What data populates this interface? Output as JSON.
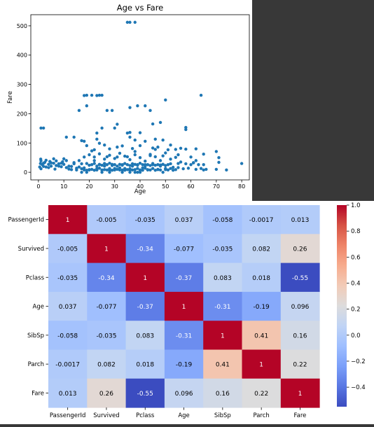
{
  "chart_data": [
    {
      "type": "scatter",
      "title": "Age vs Fare",
      "xlabel": "Age",
      "ylabel": "Fare",
      "xlim": [
        -3,
        83
      ],
      "ylim": [
        -26,
        538
      ],
      "xticks": [
        0,
        10,
        20,
        30,
        40,
        50,
        60,
        70,
        80
      ],
      "yticks": [
        0,
        100,
        200,
        300,
        400,
        500
      ],
      "color": "#1f77b4",
      "grid": false,
      "points": [
        [
          35,
          512
        ],
        [
          36,
          512
        ],
        [
          38,
          512
        ],
        [
          64,
          263
        ],
        [
          50,
          247
        ],
        [
          18,
          262
        ],
        [
          19,
          263
        ],
        [
          21,
          263
        ],
        [
          23,
          262
        ],
        [
          24,
          263
        ],
        [
          25,
          263
        ],
        [
          19,
          227
        ],
        [
          27,
          211
        ],
        [
          29,
          211
        ],
        [
          36,
          221
        ],
        [
          42,
          227
        ],
        [
          44,
          211
        ],
        [
          16,
          211
        ],
        [
          39,
          227
        ],
        [
          1,
          151
        ],
        [
          2,
          151
        ],
        [
          25,
          151
        ],
        [
          30,
          151
        ],
        [
          58,
          153
        ],
        [
          58,
          146
        ],
        [
          45,
          165
        ],
        [
          35,
          134
        ],
        [
          36,
          136
        ],
        [
          40,
          135
        ],
        [
          31,
          164
        ],
        [
          48,
          170
        ],
        [
          11,
          120
        ],
        [
          14,
          120
        ],
        [
          17,
          108
        ],
        [
          18,
          106
        ],
        [
          23,
          134
        ],
        [
          23,
          113
        ],
        [
          24,
          99
        ],
        [
          26,
          93
        ],
        [
          33,
          90
        ],
        [
          36,
          120
        ],
        [
          38,
          110
        ],
        [
          42,
          106
        ],
        [
          46,
          113
        ],
        [
          49,
          110
        ],
        [
          52,
          93
        ],
        [
          54,
          78
        ],
        [
          58,
          79
        ],
        [
          62,
          80
        ],
        [
          70,
          71
        ],
        [
          71,
          50
        ],
        [
          65,
          62
        ],
        [
          56,
          82
        ],
        [
          51,
          77
        ],
        [
          45,
          83
        ],
        [
          40,
          91
        ],
        [
          31,
          86
        ],
        [
          28,
          80
        ],
        [
          22,
          77
        ],
        [
          19,
          91
        ],
        [
          37,
          81
        ],
        [
          47,
          86
        ],
        [
          0.9,
          45
        ],
        [
          1,
          39
        ],
        [
          2,
          31
        ],
        [
          3,
          18
        ],
        [
          4,
          27
        ],
        [
          5,
          32
        ],
        [
          6,
          31
        ],
        [
          7,
          39
        ],
        [
          8,
          21
        ],
        [
          9,
          31
        ],
        [
          10,
          46
        ],
        [
          11,
          40
        ],
        [
          12,
          11
        ],
        [
          13,
          20
        ],
        [
          14,
          29
        ],
        [
          15,
          8
        ],
        [
          16,
          18
        ],
        [
          17,
          12
        ],
        [
          18,
          8
        ],
        [
          19,
          30
        ],
        [
          20,
          9
        ],
        [
          21,
          73
        ],
        [
          22,
          52
        ],
        [
          23,
          13
        ],
        [
          24,
          26
        ],
        [
          25,
          8
        ],
        [
          26,
          30
        ],
        [
          27,
          53
        ],
        [
          28,
          7
        ],
        [
          29,
          27
        ],
        [
          30,
          13
        ],
        [
          31,
          52
        ],
        [
          32,
          8
        ],
        [
          33,
          26
        ],
        [
          34,
          13
        ],
        [
          35,
          53
        ],
        [
          36,
          7
        ],
        [
          37,
          29
        ],
        [
          38,
          71
        ],
        [
          39,
          26
        ],
        [
          40,
          7
        ],
        [
          41,
          15
        ],
        [
          42,
          26
        ],
        [
          43,
          8
        ],
        [
          44,
          57
        ],
        [
          45,
          26
        ],
        [
          46,
          78
        ],
        [
          47,
          10
        ],
        [
          48,
          25
        ],
        [
          49,
          56
        ],
        [
          50,
          13
        ],
        [
          51,
          26
        ],
        [
          52,
          29
        ],
        [
          53,
          17
        ],
        [
          54,
          51
        ],
        [
          55,
          30
        ],
        [
          56,
          35
        ],
        [
          57,
          12
        ],
        [
          58,
          29
        ],
        [
          59,
          14
        ],
        [
          60,
          26
        ],
        [
          61,
          32
        ],
        [
          62,
          10
        ],
        [
          63,
          26
        ],
        [
          64,
          13
        ],
        [
          65,
          26
        ],
        [
          66,
          10
        ],
        [
          70,
          10
        ],
        [
          71,
          34
        ],
        [
          74,
          8
        ],
        [
          80,
          30
        ],
        [
          16,
          40
        ],
        [
          18,
          52
        ],
        [
          20,
          60
        ],
        [
          22,
          40
        ],
        [
          24,
          63
        ],
        [
          26,
          45
        ],
        [
          28,
          58
        ],
        [
          30,
          47
        ],
        [
          32,
          65
        ],
        [
          34,
          55
        ],
        [
          36,
          43
        ],
        [
          38,
          60
        ],
        [
          40,
          50
        ],
        [
          42,
          38
        ],
        [
          44,
          61
        ],
        [
          46,
          53
        ],
        [
          48,
          40
        ],
        [
          50,
          66
        ],
        [
          52,
          45
        ],
        [
          55,
          60
        ],
        [
          60,
          52
        ],
        [
          62,
          40
        ],
        [
          18,
          15
        ],
        [
          19,
          7
        ],
        [
          20,
          8
        ],
        [
          21,
          10
        ],
        [
          22,
          7
        ],
        [
          23,
          8
        ],
        [
          24,
          14
        ],
        [
          25,
          7
        ],
        [
          26,
          9
        ],
        [
          27,
          8
        ],
        [
          28,
          13
        ],
        [
          29,
          7
        ],
        [
          30,
          8
        ],
        [
          31,
          10
        ],
        [
          32,
          15
        ],
        [
          33,
          8
        ],
        [
          34,
          7
        ],
        [
          35,
          9
        ],
        [
          36,
          12
        ],
        [
          37,
          8
        ],
        [
          38,
          9
        ],
        [
          39,
          13
        ],
        [
          40,
          8
        ],
        [
          41,
          7
        ],
        [
          42,
          14
        ],
        [
          43,
          9
        ],
        [
          44,
          8
        ],
        [
          45,
          13
        ],
        [
          46,
          7
        ],
        [
          47,
          9
        ],
        [
          48,
          8
        ],
        [
          49,
          27
        ],
        [
          50,
          9
        ],
        [
          51,
          8
        ],
        [
          52,
          13
        ],
        [
          53,
          7
        ],
        [
          54,
          9
        ],
        [
          55,
          16
        ],
        [
          20,
          24
        ],
        [
          21,
          26
        ],
        [
          22,
          30
        ],
        [
          23,
          21
        ],
        [
          24,
          27
        ],
        [
          25,
          24
        ],
        [
          26,
          21
        ],
        [
          27,
          26
        ],
        [
          28,
          31
        ],
        [
          29,
          23
        ],
        [
          30,
          26
        ],
        [
          31,
          21
        ],
        [
          32,
          27
        ],
        [
          33,
          24
        ],
        [
          34,
          30
        ],
        [
          35,
          26
        ],
        [
          36,
          23
        ],
        [
          37,
          21
        ],
        [
          38,
          27
        ],
        [
          39,
          24
        ],
        [
          40,
          31
        ],
        [
          41,
          26
        ],
        [
          42,
          21
        ],
        [
          43,
          26
        ],
        [
          44,
          23
        ],
        [
          45,
          30
        ],
        [
          46,
          24
        ],
        [
          47,
          26
        ],
        [
          48,
          21
        ],
        [
          49,
          27
        ],
        [
          50,
          23
        ],
        [
          17,
          0
        ],
        [
          19,
          0
        ],
        [
          25,
          0
        ],
        [
          28,
          0
        ],
        [
          33,
          0
        ],
        [
          36,
          0
        ],
        [
          38,
          0
        ],
        [
          39,
          0
        ],
        [
          40,
          0
        ],
        [
          49,
          0
        ],
        [
          61,
          33
        ],
        [
          65,
          8
        ],
        [
          14,
          33
        ],
        [
          10,
          27
        ],
        [
          12,
          21
        ],
        [
          3,
          41
        ],
        [
          5,
          21
        ],
        [
          6,
          46
        ],
        [
          8,
          29
        ],
        [
          1,
          12
        ],
        [
          2,
          20
        ],
        [
          4,
          16
        ],
        [
          9,
          19
        ],
        [
          0.8,
          30
        ],
        [
          0.5,
          18
        ],
        [
          7,
          23
        ],
        [
          13,
          9
        ],
        [
          15,
          14
        ],
        [
          11,
          16
        ],
        [
          17,
          29
        ],
        [
          2.5,
          34
        ],
        [
          1.5,
          26
        ],
        [
          6.5,
          11
        ],
        [
          4.5,
          37
        ],
        [
          9.5,
          36
        ]
      ]
    },
    {
      "type": "heatmap",
      "labels": [
        "PassengerId",
        "Survived",
        "Pclass",
        "Age",
        "SibSp",
        "Parch",
        "Fare"
      ],
      "values": [
        [
          1,
          -0.005,
          -0.035,
          0.037,
          -0.058,
          -0.0017,
          0.013
        ],
        [
          -0.005,
          1,
          -0.34,
          -0.077,
          -0.035,
          0.082,
          0.26
        ],
        [
          -0.035,
          -0.34,
          1,
          -0.37,
          0.083,
          0.018,
          -0.55
        ],
        [
          0.037,
          -0.077,
          -0.37,
          1,
          -0.31,
          -0.19,
          0.096
        ],
        [
          -0.058,
          -0.035,
          0.083,
          -0.31,
          1,
          0.41,
          0.16
        ],
        [
          -0.0017,
          0.082,
          0.018,
          -0.19,
          0.41,
          1,
          0.22
        ],
        [
          0.013,
          0.26,
          -0.55,
          0.096,
          0.16,
          0.22,
          1
        ]
      ],
      "vmin": -0.55,
      "vmax": 1.0,
      "colormap": "coolwarm",
      "colorbar_ticks": [
        1.0,
        0.8,
        0.6,
        0.4,
        0.2,
        0.0,
        -0.2,
        -0.4
      ]
    }
  ]
}
